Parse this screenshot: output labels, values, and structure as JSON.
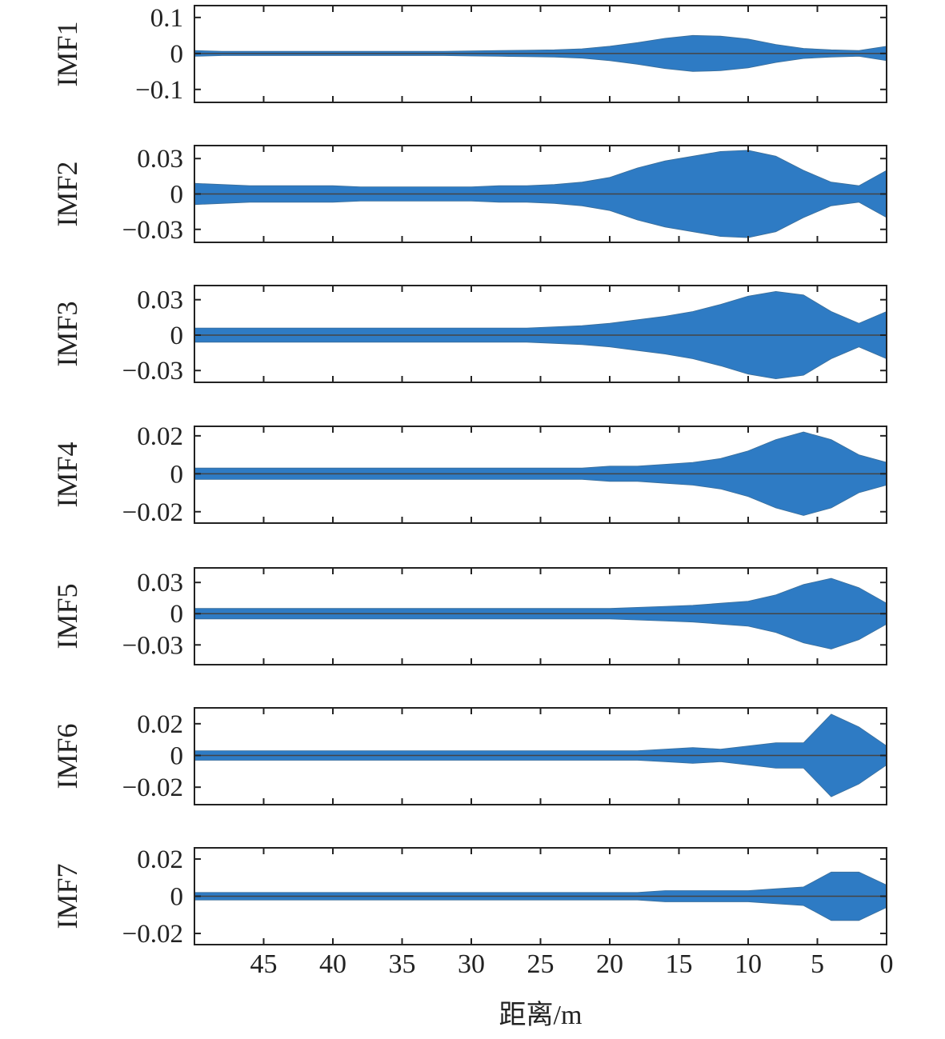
{
  "chart_data": [
    {
      "type": "band",
      "ylabel": "IMF1",
      "x": [
        50,
        48,
        46,
        44,
        42,
        40,
        38,
        36,
        34,
        32,
        30,
        28,
        26,
        24,
        22,
        20,
        18,
        16,
        14,
        12,
        10,
        8,
        6,
        4,
        2,
        0
      ],
      "amplitude": [
        0.008,
        0.006,
        0.006,
        0.006,
        0.006,
        0.006,
        0.006,
        0.006,
        0.006,
        0.006,
        0.007,
        0.008,
        0.009,
        0.01,
        0.013,
        0.02,
        0.03,
        0.042,
        0.05,
        0.048,
        0.04,
        0.025,
        0.014,
        0.01,
        0.008,
        0.02
      ],
      "color": "#2e7bc4",
      "xlim": [
        50,
        0
      ],
      "xticks": [
        45,
        40,
        35,
        30,
        25,
        20,
        15,
        10,
        5,
        0
      ],
      "ylim": [
        -0.136,
        0.133
      ],
      "yticks": [
        {
          "value": -0.1,
          "label": "−0.1"
        },
        0,
        0.1
      ]
    },
    {
      "type": "band",
      "ylabel": "IMF2",
      "x": [
        50,
        48,
        46,
        44,
        42,
        40,
        38,
        36,
        34,
        32,
        30,
        28,
        26,
        24,
        22,
        20,
        18,
        16,
        14,
        12,
        10,
        8,
        6,
        4,
        2,
        0
      ],
      "amplitude": [
        0.009,
        0.008,
        0.007,
        0.007,
        0.007,
        0.007,
        0.006,
        0.006,
        0.006,
        0.006,
        0.006,
        0.007,
        0.007,
        0.008,
        0.01,
        0.014,
        0.022,
        0.028,
        0.032,
        0.036,
        0.037,
        0.032,
        0.02,
        0.01,
        0.007,
        0.02
      ],
      "color": "#2e7bc4",
      "xlim": [
        50,
        0
      ],
      "xticks": [
        45,
        40,
        35,
        30,
        25,
        20,
        15,
        10,
        5,
        0
      ],
      "ylim": [
        -0.041,
        0.041
      ],
      "yticks": [
        {
          "value": -0.03,
          "label": "−0.03"
        },
        0,
        0.03
      ]
    },
    {
      "type": "band",
      "ylabel": "IMF3",
      "x": [
        50,
        48,
        46,
        44,
        42,
        40,
        38,
        36,
        34,
        32,
        30,
        28,
        26,
        24,
        22,
        20,
        18,
        16,
        14,
        12,
        10,
        8,
        6,
        4,
        2,
        0
      ],
      "amplitude": [
        0.006,
        0.006,
        0.006,
        0.006,
        0.006,
        0.006,
        0.006,
        0.006,
        0.006,
        0.006,
        0.006,
        0.006,
        0.006,
        0.007,
        0.008,
        0.01,
        0.013,
        0.016,
        0.02,
        0.026,
        0.033,
        0.037,
        0.034,
        0.02,
        0.01,
        0.02
      ],
      "color": "#2e7bc4",
      "xlim": [
        50,
        0
      ],
      "xticks": [
        45,
        40,
        35,
        30,
        25,
        20,
        15,
        10,
        5,
        0
      ],
      "ylim": [
        -0.04,
        0.042
      ],
      "yticks": [
        {
          "value": -0.03,
          "label": "−0.03"
        },
        0,
        0.03
      ]
    },
    {
      "type": "band",
      "ylabel": "IMF4",
      "x": [
        50,
        48,
        46,
        44,
        42,
        40,
        38,
        36,
        34,
        32,
        30,
        28,
        26,
        24,
        22,
        20,
        18,
        16,
        14,
        12,
        10,
        8,
        6,
        4,
        2,
        0
      ],
      "amplitude": [
        0.003,
        0.003,
        0.003,
        0.003,
        0.003,
        0.003,
        0.003,
        0.003,
        0.003,
        0.003,
        0.003,
        0.003,
        0.003,
        0.003,
        0.003,
        0.004,
        0.004,
        0.005,
        0.006,
        0.008,
        0.012,
        0.018,
        0.022,
        0.018,
        0.01,
        0.006
      ],
      "color": "#2e7bc4",
      "xlim": [
        50,
        0
      ],
      "xticks": [
        45,
        40,
        35,
        30,
        25,
        20,
        15,
        10,
        5,
        0
      ],
      "ylim": [
        -0.026,
        0.025
      ],
      "yticks": [
        {
          "value": -0.02,
          "label": "−0.02"
        },
        0,
        0.02
      ]
    },
    {
      "type": "band",
      "ylabel": "IMF5",
      "x": [
        50,
        48,
        46,
        44,
        42,
        40,
        38,
        36,
        34,
        32,
        30,
        28,
        26,
        24,
        22,
        20,
        18,
        16,
        14,
        12,
        10,
        8,
        6,
        4,
        2,
        0
      ],
      "amplitude": [
        0.005,
        0.005,
        0.005,
        0.005,
        0.005,
        0.005,
        0.005,
        0.005,
        0.005,
        0.005,
        0.005,
        0.005,
        0.005,
        0.005,
        0.005,
        0.005,
        0.006,
        0.007,
        0.008,
        0.01,
        0.012,
        0.018,
        0.028,
        0.034,
        0.025,
        0.01
      ],
      "color": "#2e7bc4",
      "xlim": [
        50,
        0
      ],
      "xticks": [
        45,
        40,
        35,
        30,
        25,
        20,
        15,
        10,
        5,
        0
      ],
      "ylim": [
        -0.049,
        0.044
      ],
      "yticks": [
        {
          "value": -0.03,
          "label": "−0.03"
        },
        0,
        0.03
      ]
    },
    {
      "type": "band",
      "ylabel": "IMF6",
      "x": [
        50,
        48,
        46,
        44,
        42,
        40,
        38,
        36,
        34,
        32,
        30,
        28,
        26,
        24,
        22,
        20,
        18,
        16,
        14,
        12,
        10,
        8,
        6,
        4,
        2,
        0
      ],
      "amplitude": [
        0.003,
        0.003,
        0.003,
        0.003,
        0.003,
        0.003,
        0.003,
        0.003,
        0.003,
        0.003,
        0.003,
        0.003,
        0.003,
        0.003,
        0.003,
        0.003,
        0.003,
        0.004,
        0.005,
        0.004,
        0.006,
        0.008,
        0.008,
        0.026,
        0.018,
        0.006
      ],
      "color": "#2e7bc4",
      "xlim": [
        50,
        0
      ],
      "xticks": [
        45,
        40,
        35,
        30,
        25,
        20,
        15,
        10,
        5,
        0
      ],
      "ylim": [
        -0.031,
        0.03
      ],
      "yticks": [
        {
          "value": -0.02,
          "label": "−0.02"
        },
        0,
        0.02
      ]
    },
    {
      "type": "band",
      "ylabel": "IMF7",
      "x": [
        50,
        48,
        46,
        44,
        42,
        40,
        38,
        36,
        34,
        32,
        30,
        28,
        26,
        24,
        22,
        20,
        18,
        16,
        14,
        12,
        10,
        8,
        6,
        4,
        2,
        0
      ],
      "amplitude": [
        0.002,
        0.002,
        0.002,
        0.002,
        0.002,
        0.002,
        0.002,
        0.002,
        0.002,
        0.002,
        0.002,
        0.002,
        0.002,
        0.002,
        0.002,
        0.002,
        0.002,
        0.003,
        0.003,
        0.003,
        0.003,
        0.004,
        0.005,
        0.013,
        0.013,
        0.006
      ],
      "color": "#2e7bc4",
      "xlim": [
        50,
        0
      ],
      "xticks": [
        45,
        40,
        35,
        30,
        25,
        20,
        15,
        10,
        5,
        0
      ],
      "ylim": [
        -0.026,
        0.026
      ],
      "yticks": [
        {
          "value": -0.02,
          "label": "−0.02"
        },
        0,
        0.02
      ],
      "xlabel": "距离/m"
    }
  ]
}
